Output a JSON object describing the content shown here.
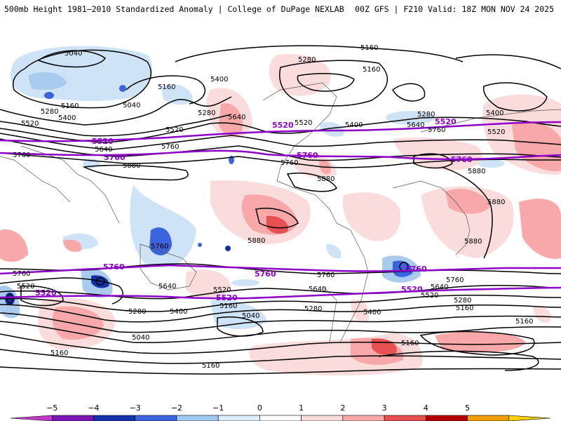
{
  "header": {
    "title": "500mb Height 1981–2010 Standardized Anomaly | College of DuPage NEXLAB",
    "model_run": "00Z GFS | F210 Valid: 18Z MON NOV 24 2025"
  },
  "map": {
    "contour_labels": {
      "c5040_n": "5040",
      "c5040_n2": "5040",
      "c5160_ne": "5160",
      "c5160_n": "5160",
      "c5160_n2": "5160",
      "c5160_nw": "5160",
      "c5280_nw": "5280",
      "c5280_n": "5280",
      "c5280_ne": "5280",
      "c5280_ne2": "5280",
      "c5400_n": "5400",
      "c5400_nw": "5400",
      "c5400_na": "5400",
      "c5400_ne": "5400",
      "c5520_nw": "5520",
      "c5520_n": "5520",
      "c5520_na": "5520",
      "c5520_ne": "5520",
      "c5640_n": "5640",
      "c5640_n2": "5640",
      "c5640_ne": "5640",
      "c5760_ne": "5760",
      "c5760_n": "5760",
      "c5760_w": "5760",
      "c5760_w2": "5760",
      "c5880_n": "5880",
      "c5880_na": "5880",
      "c5880_ne": "5880",
      "c5880_e": "5880",
      "c5880_af": "5880",
      "c5760_au": "5760",
      "c5880_sa": "5880",
      "c5760_s": "5760",
      "c5760_s2": "5760",
      "c5760_s3": "5760",
      "c5640_s": "5640",
      "c5640_s2": "5640",
      "c5640_s3": "5640",
      "c5520_s": "5520",
      "c5520_s2": "5520",
      "c5520_s3": "5520",
      "c5400_s": "5400",
      "c5400_s2": "5400",
      "c5280_s": "5280",
      "c5280_s2": "5280",
      "c5280_s3": "5280",
      "c5160_s": "5160",
      "c5160_s2": "5160",
      "c5160_s3": "5160",
      "c5160_s4": "5160",
      "c5160_s5": "5160",
      "c5040_s": "5040",
      "c5040_s2": "5040",
      "c5160_s6": "5160"
    },
    "climo_labels": {
      "p5520_n1": "5520",
      "p5520_n2": "5520",
      "p5520_n3": "5520",
      "p5760_n1": "5760",
      "p5760_n2": "5760",
      "p5760_n3": "5760",
      "p5760_s1": "5760",
      "p5760_s2": "5760",
      "p5760_s3": "5760",
      "p5520_s1": "5520",
      "p5520_s2": "5520",
      "p5520_s3": "5520"
    }
  },
  "colorbar": {
    "ticks": [
      "−5",
      "−4",
      "−3",
      "−2",
      "−1",
      "0",
      "1",
      "2",
      "3",
      "4",
      "5"
    ],
    "colors": [
      "#c03cc8",
      "#7a14b4",
      "#1432aa",
      "#3c64dc",
      "#a0c8f0",
      "#dceefa",
      "#ffffff",
      "#fadcdc",
      "#f8a8a8",
      "#e65050",
      "#b40000",
      "#f0a000",
      "#f5d200"
    ]
  }
}
